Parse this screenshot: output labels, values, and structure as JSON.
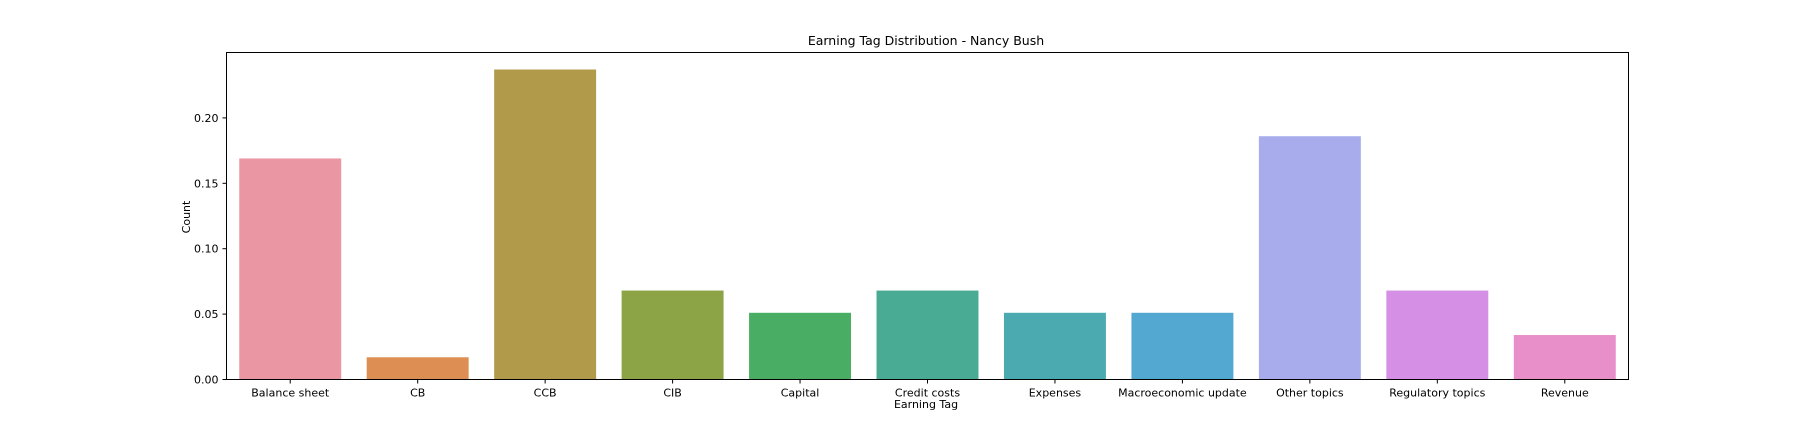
{
  "chart_data": {
    "type": "bar",
    "title": "Earning Tag Distribution - Nancy Bush",
    "xlabel": "Earning Tag",
    "ylabel": "Count",
    "ylim": [
      0,
      0.25
    ],
    "yticks": [
      "0.00",
      "0.05",
      "0.10",
      "0.15",
      "0.20"
    ],
    "grid": false,
    "categories": [
      "Balance sheet",
      "CB",
      "CCB",
      "CIB",
      "Capital",
      "Credit costs",
      "Expenses",
      "Macroeconomic update",
      "Other topics",
      "Regulatory topics",
      "Revenue"
    ],
    "values": [
      0.169,
      0.017,
      0.237,
      0.068,
      0.051,
      0.068,
      0.051,
      0.051,
      0.186,
      0.068,
      0.034
    ],
    "colors": [
      "#ea96a3",
      "#dd8e52",
      "#b19b4a",
      "#8da446",
      "#49ad64",
      "#4aab94",
      "#4aaaaf",
      "#53a8d2",
      "#a8acec",
      "#d590e6",
      "#e88ec8"
    ]
  }
}
